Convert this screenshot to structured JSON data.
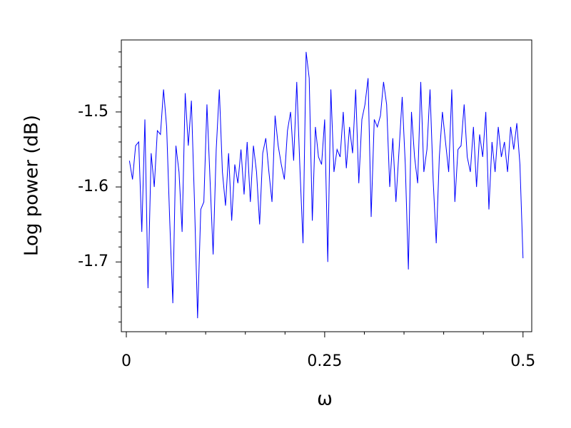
{
  "chart_data": {
    "type": "line",
    "x_label": "ω",
    "y_label": "Log power (dB)",
    "xlim": [
      -0.0063,
      0.511
    ],
    "ylim": [
      -1.793,
      -1.404
    ],
    "xticks": [
      0,
      0.25,
      0.5
    ],
    "yticks": [
      -1.5,
      -1.6,
      -1.7
    ],
    "xminorticks": [
      0.05,
      0.1,
      0.15,
      0.2,
      0.3,
      0.35,
      0.4,
      0.45
    ],
    "yminorticks": [
      -1.42,
      -1.44,
      -1.46,
      -1.48,
      -1.52,
      -1.54,
      -1.56,
      -1.58,
      -1.62,
      -1.64,
      -1.66,
      -1.68,
      -1.72,
      -1.74,
      -1.76,
      -1.78
    ],
    "x": [
      0.0039,
      0.0078,
      0.0117,
      0.0156,
      0.0195,
      0.0234,
      0.0273,
      0.0313,
      0.0352,
      0.0391,
      0.043,
      0.0469,
      0.0508,
      0.0547,
      0.0586,
      0.0625,
      0.0664,
      0.0703,
      0.0742,
      0.0781,
      0.082,
      0.0859,
      0.0898,
      0.0938,
      0.0977,
      0.1016,
      0.1055,
      0.1094,
      0.1133,
      0.1172,
      0.1211,
      0.125,
      0.1289,
      0.1328,
      0.1367,
      0.1406,
      0.1445,
      0.1484,
      0.1523,
      0.1563,
      0.1602,
      0.1641,
      0.168,
      0.1719,
      0.1758,
      0.1797,
      0.1836,
      0.1875,
      0.1914,
      0.1953,
      0.1992,
      0.2031,
      0.207,
      0.2109,
      0.2148,
      0.2188,
      0.2227,
      0.2266,
      0.2305,
      0.2344,
      0.2383,
      0.2422,
      0.2461,
      0.25,
      0.2539,
      0.2578,
      0.2617,
      0.2656,
      0.2695,
      0.2734,
      0.2773,
      0.2813,
      0.2852,
      0.2891,
      0.293,
      0.2969,
      0.3008,
      0.3047,
      0.3086,
      0.3125,
      0.3164,
      0.3203,
      0.3242,
      0.3281,
      0.332,
      0.3359,
      0.3398,
      0.3438,
      0.3477,
      0.3516,
      0.3555,
      0.3594,
      0.3633,
      0.3672,
      0.3711,
      0.375,
      0.3789,
      0.3828,
      0.3867,
      0.3906,
      0.3945,
      0.3984,
      0.4023,
      0.4063,
      0.4102,
      0.4141,
      0.418,
      0.4219,
      0.4258,
      0.4297,
      0.4336,
      0.4375,
      0.4414,
      0.4453,
      0.4492,
      0.4531,
      0.457,
      0.4609,
      0.4648,
      0.4688,
      0.4727,
      0.4766,
      0.4805,
      0.4844,
      0.4883,
      0.4922,
      0.4961,
      0.5
    ],
    "series": [
      {
        "color": "#0000ff",
        "values": [
          -1.565,
          -1.59,
          -1.545,
          -1.54,
          -1.66,
          -1.51,
          -1.735,
          -1.555,
          -1.6,
          -1.525,
          -1.53,
          -1.47,
          -1.52,
          -1.645,
          -1.755,
          -1.545,
          -1.58,
          -1.66,
          -1.475,
          -1.545,
          -1.485,
          -1.62,
          -1.775,
          -1.63,
          -1.62,
          -1.49,
          -1.59,
          -1.69,
          -1.55,
          -1.47,
          -1.58,
          -1.625,
          -1.555,
          -1.645,
          -1.57,
          -1.595,
          -1.55,
          -1.61,
          -1.54,
          -1.62,
          -1.545,
          -1.58,
          -1.65,
          -1.555,
          -1.535,
          -1.58,
          -1.62,
          -1.505,
          -1.545,
          -1.57,
          -1.59,
          -1.525,
          -1.5,
          -1.565,
          -1.46,
          -1.575,
          -1.675,
          -1.42,
          -1.455,
          -1.645,
          -1.52,
          -1.56,
          -1.57,
          -1.51,
          -1.7,
          -1.47,
          -1.58,
          -1.55,
          -1.56,
          -1.5,
          -1.575,
          -1.52,
          -1.555,
          -1.47,
          -1.595,
          -1.51,
          -1.49,
          -1.455,
          -1.64,
          -1.51,
          -1.52,
          -1.505,
          -1.46,
          -1.49,
          -1.6,
          -1.535,
          -1.62,
          -1.55,
          -1.48,
          -1.57,
          -1.71,
          -1.5,
          -1.56,
          -1.595,
          -1.46,
          -1.58,
          -1.55,
          -1.47,
          -1.59,
          -1.675,
          -1.56,
          -1.5,
          -1.54,
          -1.58,
          -1.47,
          -1.62,
          -1.55,
          -1.545,
          -1.49,
          -1.56,
          -1.58,
          -1.52,
          -1.6,
          -1.53,
          -1.56,
          -1.5,
          -1.63,
          -1.54,
          -1.58,
          -1.52,
          -1.56,
          -1.54,
          -1.58,
          -1.52,
          -1.55,
          -1.515,
          -1.57,
          -1.695
        ]
      }
    ]
  }
}
